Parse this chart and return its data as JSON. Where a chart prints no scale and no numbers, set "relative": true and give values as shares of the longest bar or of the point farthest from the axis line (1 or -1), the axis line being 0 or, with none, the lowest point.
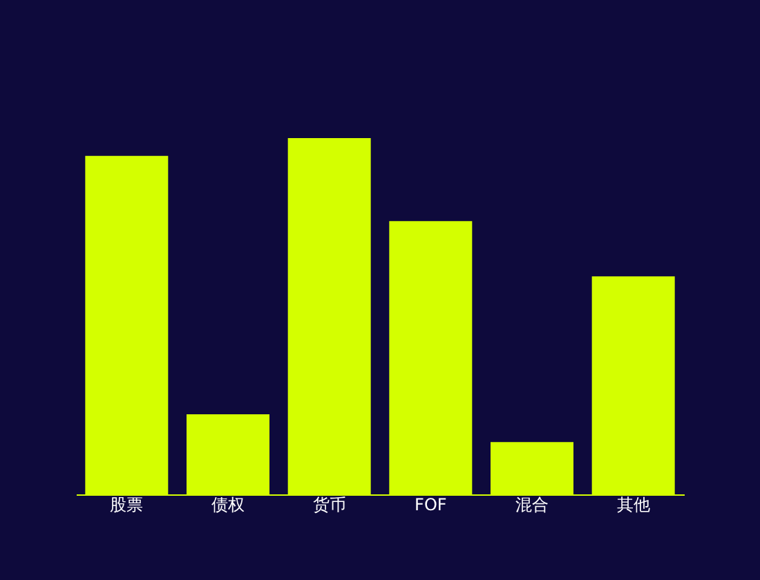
{
  "chart_data": {
    "type": "bar",
    "relative": true,
    "categories": [
      "股票",
      "债权",
      "货币",
      "FOF",
      "混合",
      "其他"
    ],
    "series": [
      {
        "color": "#d4ff00",
        "values": [
          0.95,
          0.225,
          1,
          0.767,
          0.147,
          0.612
        ]
      }
    ],
    "grid": false,
    "legend": false
  }
}
